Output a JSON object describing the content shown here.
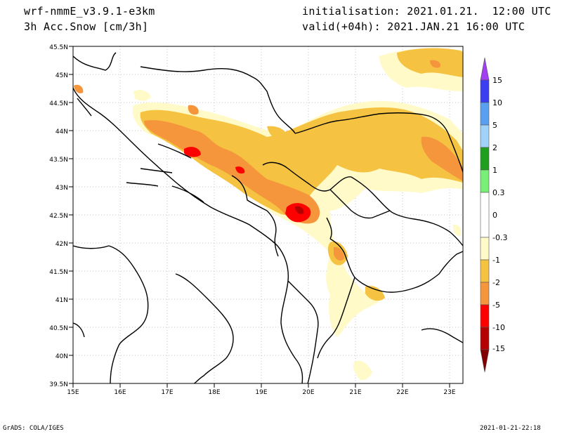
{
  "header": {
    "model": "wrf-nmmE_v3.9.1-e3km",
    "field": "3h Acc.Snow [cm/3h]",
    "init": "initialisation: 2021.01.21.  12:00 UTC",
    "valid": "valid(+04h): 2021.JAN.21 16:00 UTC"
  },
  "footer": {
    "credit": "GrADS: COLA/IGES",
    "timestamp": "2021-01-21-22:18"
  },
  "map": {
    "lon_range": [
      15,
      23.3
    ],
    "lat_range": [
      39.5,
      45.5
    ],
    "lon_ticks": [
      "15E",
      "16E",
      "17E",
      "18E",
      "19E",
      "20E",
      "21E",
      "22E",
      "23E"
    ],
    "lat_ticks": [
      "45.5N",
      "45N",
      "44.5N",
      "44N",
      "43.5N",
      "43N",
      "42.5N",
      "42N",
      "41.5N",
      "41N",
      "40.5N",
      "40N",
      "39.5N"
    ]
  },
  "legend": {
    "labels": [
      "15",
      "10",
      "5",
      "2",
      "1",
      "0.3",
      "0",
      "-0.3",
      "-1",
      "-2",
      "-5",
      "-10",
      "-15"
    ],
    "colors": {
      "top_arrow": "#a040f0",
      "s15": "#3c3cf0",
      "s10": "#5aa0f0",
      "s5": "#a0d2fa",
      "s2": "#1ea01e",
      "s1": "#78f078",
      "zero": "#ffffff",
      "n03": "#fffac8",
      "n1": "#f5c341",
      "n2": "#f5963c",
      "n5": "#ff0000",
      "n10": "#b40000",
      "bottom_arrow": "#820000"
    }
  }
}
